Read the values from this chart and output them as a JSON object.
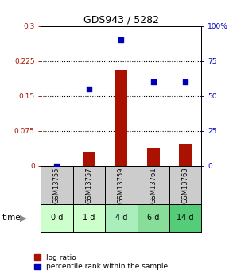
{
  "title": "GDS943 / 5282",
  "samples": [
    "GSM13755",
    "GSM13757",
    "GSM13759",
    "GSM13761",
    "GSM13763"
  ],
  "time_labels": [
    "0 d",
    "1 d",
    "4 d",
    "6 d",
    "14 d"
  ],
  "log_ratio": [
    0.0,
    0.028,
    0.205,
    0.038,
    0.048
  ],
  "percentile_rank": [
    0.0,
    55.0,
    90.0,
    60.0,
    60.0
  ],
  "left_ylim": [
    0,
    0.3
  ],
  "right_ylim": [
    0,
    100
  ],
  "left_yticks": [
    0,
    0.075,
    0.15,
    0.225,
    0.3
  ],
  "right_yticks": [
    0,
    25,
    50,
    75,
    100
  ],
  "left_yticklabels": [
    "0",
    "0.075",
    "0.15",
    "0.225",
    "0.3"
  ],
  "right_yticklabels": [
    "0",
    "25",
    "50",
    "75",
    "100%"
  ],
  "bar_color": "#aa1100",
  "dot_color": "#0000bb",
  "sample_box_color": "#cccccc",
  "time_box_colors": [
    "#ccffcc",
    "#ccffcc",
    "#aaeebb",
    "#88dd99",
    "#55cc77"
  ],
  "legend_items": [
    "log ratio",
    "percentile rank within the sample"
  ]
}
